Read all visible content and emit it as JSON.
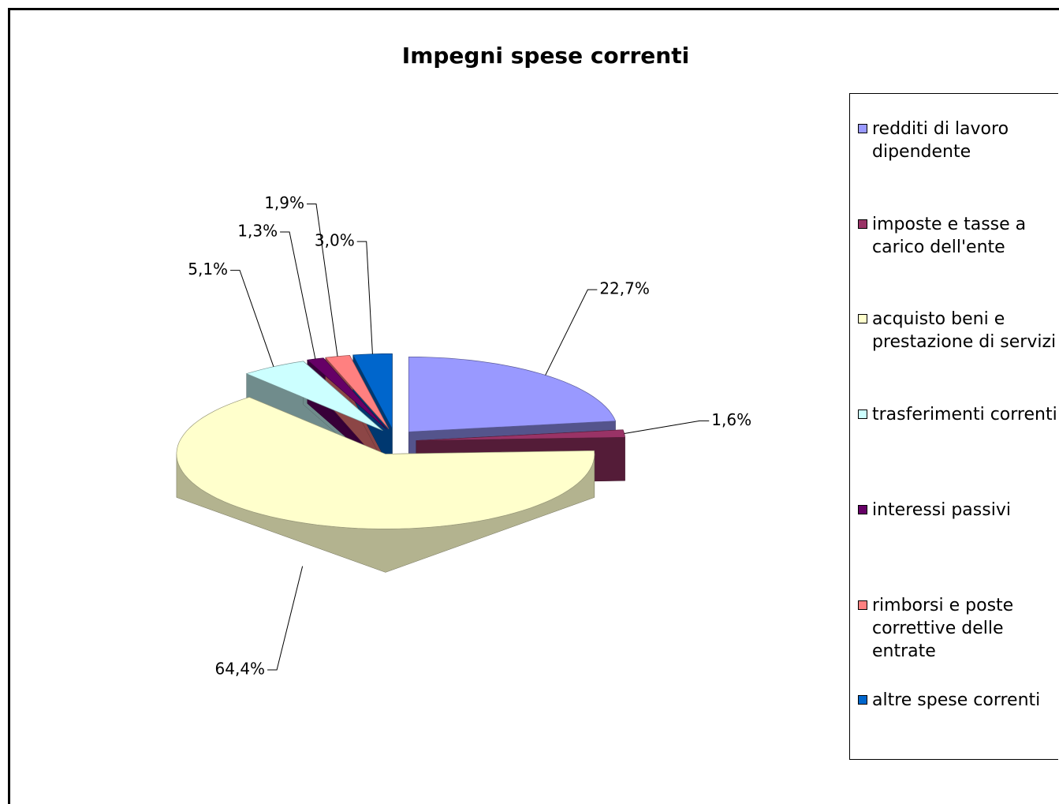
{
  "chart_data": {
    "type": "pie3d",
    "title": "Impegni spese correnti",
    "categories": [
      "redditi di lavoro dipendente",
      "imposte e tasse a carico dell'ente",
      "acquisto beni e prestazione di servizi",
      "trasferimenti correnti",
      "interessi passivi",
      "rimborsi e poste correttive delle entrate",
      "altre spese correnti"
    ],
    "values": [
      22.7,
      1.6,
      64.4,
      5.1,
      1.3,
      1.9,
      3.0
    ],
    "value_labels": [
      "22,7%",
      "1,6%",
      "64,4%",
      "5,1%",
      "1,3%",
      "1,9%",
      "3,0%"
    ],
    "colors": [
      "#9999ff",
      "#993366",
      "#ffffcc",
      "#ccffff",
      "#660066",
      "#ff8080",
      "#0066cc"
    ],
    "legend": "right"
  }
}
